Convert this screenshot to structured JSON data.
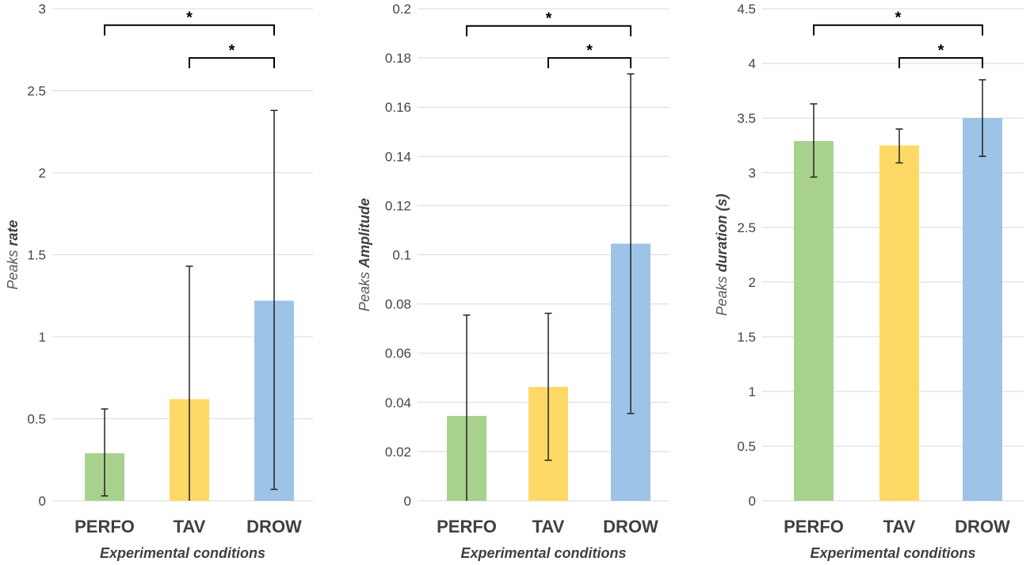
{
  "chart_data": [
    {
      "type": "bar",
      "categories": [
        "PERFO",
        "TAV",
        "DROW"
      ],
      "values": [
        0.29,
        0.62,
        1.22
      ],
      "error_low": [
        0.03,
        0.0,
        0.07
      ],
      "error_high": [
        0.56,
        1.43,
        2.38
      ],
      "colors": [
        "#a9d18e",
        "#ffd966",
        "#9dc3e6"
      ],
      "xlabel": "Experimental conditions",
      "ylabel_prefix": "Peaks",
      "ylabel_emph": "rate",
      "ylim": [
        0,
        3
      ],
      "yticks": [
        "0",
        "0.5",
        "1",
        "1.5",
        "2",
        "2.5",
        "3"
      ],
      "tick_values": [
        0,
        0.5,
        1,
        1.5,
        2,
        2.5,
        3
      ],
      "significance": [
        {
          "from": 0,
          "to": 2,
          "label": "*",
          "level": 2.9
        },
        {
          "from": 1,
          "to": 2,
          "label": "*",
          "level": 2.7
        }
      ]
    },
    {
      "type": "bar",
      "categories": [
        "PERFO",
        "TAV",
        "DROW"
      ],
      "values": [
        0.0345,
        0.0463,
        0.1045
      ],
      "error_low": [
        0.0,
        0.0165,
        0.0355
      ],
      "error_high": [
        0.0755,
        0.0762,
        0.1735
      ],
      "colors": [
        "#a9d18e",
        "#ffd966",
        "#9dc3e6"
      ],
      "xlabel": "Experimental conditions",
      "ylabel_prefix": "Peaks",
      "ylabel_emph": "Amplitude",
      "ylim": [
        0,
        0.2
      ],
      "yticks": [
        "0",
        "0.02",
        "0.04",
        "0.06",
        "0.08",
        "0.1",
        "0.12",
        "0.14",
        "0.16",
        "0.18",
        "0.2"
      ],
      "tick_values": [
        0,
        0.02,
        0.04,
        0.06,
        0.08,
        0.1,
        0.12,
        0.14,
        0.16,
        0.18,
        0.2
      ],
      "significance": [
        {
          "from": 0,
          "to": 2,
          "label": "*",
          "level": 0.193
        },
        {
          "from": 1,
          "to": 2,
          "label": "*",
          "level": 0.18
        }
      ]
    },
    {
      "type": "bar",
      "categories": [
        "PERFO",
        "TAV",
        "DROW"
      ],
      "values": [
        3.29,
        3.25,
        3.5
      ],
      "error_low": [
        2.96,
        3.09,
        3.15
      ],
      "error_high": [
        3.63,
        3.4,
        3.85
      ],
      "colors": [
        "#a9d18e",
        "#ffd966",
        "#9dc3e6"
      ],
      "xlabel": "Experimental conditions",
      "ylabel_prefix": "Peaks",
      "ylabel_emph": "duration (s)",
      "ylim": [
        0,
        4.5
      ],
      "yticks": [
        "0",
        "0.5",
        "1",
        "1.5",
        "2",
        "2.5",
        "3",
        "3.5",
        "4",
        "4.5"
      ],
      "tick_values": [
        0,
        0.5,
        1,
        1.5,
        2,
        2.5,
        3,
        3.5,
        4,
        4.5
      ],
      "significance": [
        {
          "from": 0,
          "to": 2,
          "label": "*",
          "level": 4.35
        },
        {
          "from": 1,
          "to": 2,
          "label": "*",
          "level": 4.05
        }
      ]
    }
  ]
}
